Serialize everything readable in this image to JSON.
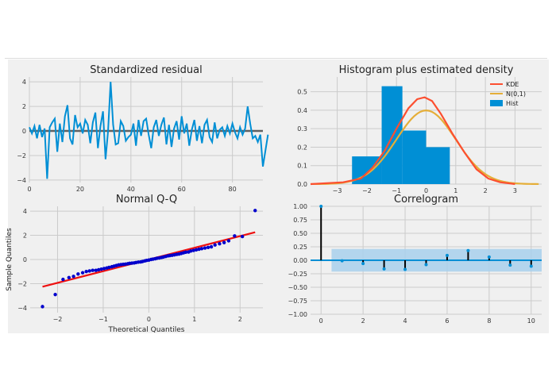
{
  "colors": {
    "panel_bg": "#f0f0f0",
    "fig_bg": "#f0f0f0",
    "grid": "#cbcbcb",
    "blue": "#008fd5",
    "dark_blue": "#0000cc",
    "red": "#fc4f30",
    "orange": "#e5ae38",
    "zero_gray": "#606060",
    "band": "#a8d0ec",
    "black": "#000000"
  },
  "chart_data": [
    {
      "id": "standardized-residual",
      "type": "line",
      "title": "Standardized residual",
      "xlim": [
        0,
        92
      ],
      "ylim": [
        -4.2,
        4.4
      ],
      "xticks": [
        0,
        20,
        40,
        60,
        80
      ],
      "yticks": [
        -4,
        -2,
        0,
        2,
        4
      ],
      "zero_line": true,
      "series": [
        {
          "values": [
            0.3,
            -0.2,
            0.4,
            -0.6,
            0.5,
            -0.5,
            0.2,
            -3.9,
            0.3,
            0.7,
            1.0,
            -1.7,
            0.6,
            -0.9,
            1.2,
            2.1,
            -0.6,
            -1.1,
            1.3,
            0.3,
            0.6,
            -0.2,
            0.9,
            0.5,
            -1.0,
            0.7,
            1.5,
            -1.4,
            0.4,
            1.6,
            -2.3,
            0.0,
            4.0,
            0.5,
            -1.1,
            -1.0,
            0.8,
            0.4,
            -0.8,
            -0.5,
            -0.3,
            0.6,
            -1.2,
            0.9,
            -0.4,
            0.8,
            1.0,
            -0.3,
            -1.4,
            0.3,
            0.9,
            -0.4,
            0.5,
            1.1,
            -1.1,
            0.5,
            -1.3,
            0.2,
            0.8,
            -0.7,
            1.2,
            -0.2,
            0.6,
            -1.2,
            0.1,
            0.9,
            -0.8,
            0.4,
            -1.0,
            0.5,
            0.9,
            -0.5,
            -0.9,
            0.7,
            -0.6,
            0.1,
            0.3,
            -0.4,
            0.4,
            -0.2,
            0.6,
            -0.1,
            -0.6,
            0.3,
            -0.3,
            0.2,
            2.0,
            0.6,
            -0.6,
            -0.4,
            -0.9,
            -0.3,
            -2.9,
            -1.6,
            -0.3
          ]
        }
      ]
    },
    {
      "id": "histogram-density",
      "type": "bar",
      "title": "Histogram plus estimated density",
      "xlim": [
        -3.9,
        3.9
      ],
      "ylim": [
        0,
        0.58
      ],
      "xticks": [
        -3,
        -2,
        -1,
        0,
        1,
        2,
        3
      ],
      "yticks": [
        0.0,
        0.1,
        0.2,
        0.3,
        0.4,
        0.5
      ],
      "hist": {
        "edges": [
          -2.5,
          -1.5,
          -0.8,
          0.0,
          0.8,
          1.6,
          2.4
        ],
        "values": [
          0.15,
          0.53,
          0.29,
          0.2,
          0.0,
          0.0
        ]
      },
      "legend_position": "top-right",
      "legend": [
        "KDE",
        "N(0,1)",
        "Hist"
      ],
      "kde_points": [
        [
          -3.9,
          0.0
        ],
        [
          -2.8,
          0.01
        ],
        [
          -2.2,
          0.03
        ],
        [
          -1.8,
          0.09
        ],
        [
          -1.4,
          0.18
        ],
        [
          -1.0,
          0.3
        ],
        [
          -0.6,
          0.41
        ],
        [
          -0.3,
          0.46
        ],
        [
          -0.05,
          0.47
        ],
        [
          0.2,
          0.45
        ],
        [
          0.5,
          0.38
        ],
        [
          0.9,
          0.27
        ],
        [
          1.3,
          0.17
        ],
        [
          1.7,
          0.08
        ],
        [
          2.1,
          0.03
        ],
        [
          2.5,
          0.01
        ],
        [
          3.0,
          0.0
        ]
      ]
    },
    {
      "id": "normal-qq",
      "type": "scatter",
      "title": "Normal Q-Q",
      "xlabel": "Theoretical Quantiles",
      "ylabel": "Sample Quantiles",
      "xlim": [
        -2.6,
        2.5
      ],
      "ylim": [
        -4.4,
        4.4
      ],
      "xticks": [
        -2,
        -1,
        0,
        1,
        2
      ],
      "yticks": [
        -4,
        -2,
        0,
        2,
        4
      ],
      "points": [
        [
          -2.33,
          -3.9
        ],
        [
          -2.05,
          -2.9
        ],
        [
          -1.88,
          -1.65
        ],
        [
          -1.75,
          -1.5
        ],
        [
          -1.65,
          -1.4
        ],
        [
          -1.55,
          -1.2
        ],
        [
          -1.45,
          -1.1
        ],
        [
          -1.37,
          -1.0
        ],
        [
          -1.3,
          -0.95
        ],
        [
          -1.23,
          -0.9
        ],
        [
          -1.16,
          -0.9
        ],
        [
          -1.1,
          -0.85
        ],
        [
          -1.04,
          -0.8
        ],
        [
          -0.98,
          -0.75
        ],
        [
          -0.92,
          -0.7
        ],
        [
          -0.87,
          -0.65
        ],
        [
          -0.81,
          -0.6
        ],
        [
          -0.76,
          -0.55
        ],
        [
          -0.71,
          -0.5
        ],
        [
          -0.66,
          -0.45
        ],
        [
          -0.61,
          -0.42
        ],
        [
          -0.56,
          -0.4
        ],
        [
          -0.51,
          -0.38
        ],
        [
          -0.46,
          -0.35
        ],
        [
          -0.42,
          -0.32
        ],
        [
          -0.37,
          -0.3
        ],
        [
          -0.32,
          -0.28
        ],
        [
          -0.28,
          -0.25
        ],
        [
          -0.23,
          -0.22
        ],
        [
          -0.18,
          -0.2
        ],
        [
          -0.14,
          -0.17
        ],
        [
          -0.09,
          -0.12
        ],
        [
          -0.05,
          -0.08
        ],
        [
          0.0,
          -0.05
        ],
        [
          0.05,
          0.0
        ],
        [
          0.09,
          0.03
        ],
        [
          0.14,
          0.06
        ],
        [
          0.18,
          0.1
        ],
        [
          0.23,
          0.13
        ],
        [
          0.28,
          0.17
        ],
        [
          0.32,
          0.2
        ],
        [
          0.37,
          0.25
        ],
        [
          0.42,
          0.3
        ],
        [
          0.46,
          0.32
        ],
        [
          0.51,
          0.35
        ],
        [
          0.56,
          0.38
        ],
        [
          0.61,
          0.42
        ],
        [
          0.66,
          0.45
        ],
        [
          0.71,
          0.5
        ],
        [
          0.76,
          0.55
        ],
        [
          0.81,
          0.6
        ],
        [
          0.87,
          0.62
        ],
        [
          0.92,
          0.7
        ],
        [
          0.98,
          0.75
        ],
        [
          1.04,
          0.8
        ],
        [
          1.1,
          0.85
        ],
        [
          1.16,
          0.9
        ],
        [
          1.23,
          0.95
        ],
        [
          1.3,
          1.0
        ],
        [
          1.37,
          1.05
        ],
        [
          1.45,
          1.2
        ],
        [
          1.55,
          1.3
        ],
        [
          1.65,
          1.4
        ],
        [
          1.75,
          1.55
        ],
        [
          1.88,
          1.95
        ],
        [
          2.05,
          1.9
        ],
        [
          2.33,
          4.05
        ]
      ],
      "reference_line": [
        [
          -2.33,
          -2.25
        ],
        [
          2.33,
          2.25
        ]
      ]
    },
    {
      "id": "correlogram",
      "type": "bar",
      "title": "Correlogram",
      "xlim": [
        -0.5,
        10.5
      ],
      "ylim": [
        -1.0,
        1.0
      ],
      "xticks": [
        0,
        2,
        4,
        6,
        8,
        10
      ],
      "yticks": [
        1.0,
        0.75,
        0.5,
        0.25,
        0.0,
        -0.25,
        -0.5,
        -0.75,
        -1.0
      ],
      "lags": [
        0,
        1,
        2,
        3,
        4,
        5,
        6,
        7,
        8,
        9,
        10
      ],
      "values": [
        1.0,
        -0.01,
        -0.06,
        -0.16,
        -0.17,
        -0.08,
        0.09,
        0.18,
        0.06,
        -0.09,
        -0.11
      ],
      "confidence_band": [
        0.21,
        0.21
      ]
    }
  ]
}
